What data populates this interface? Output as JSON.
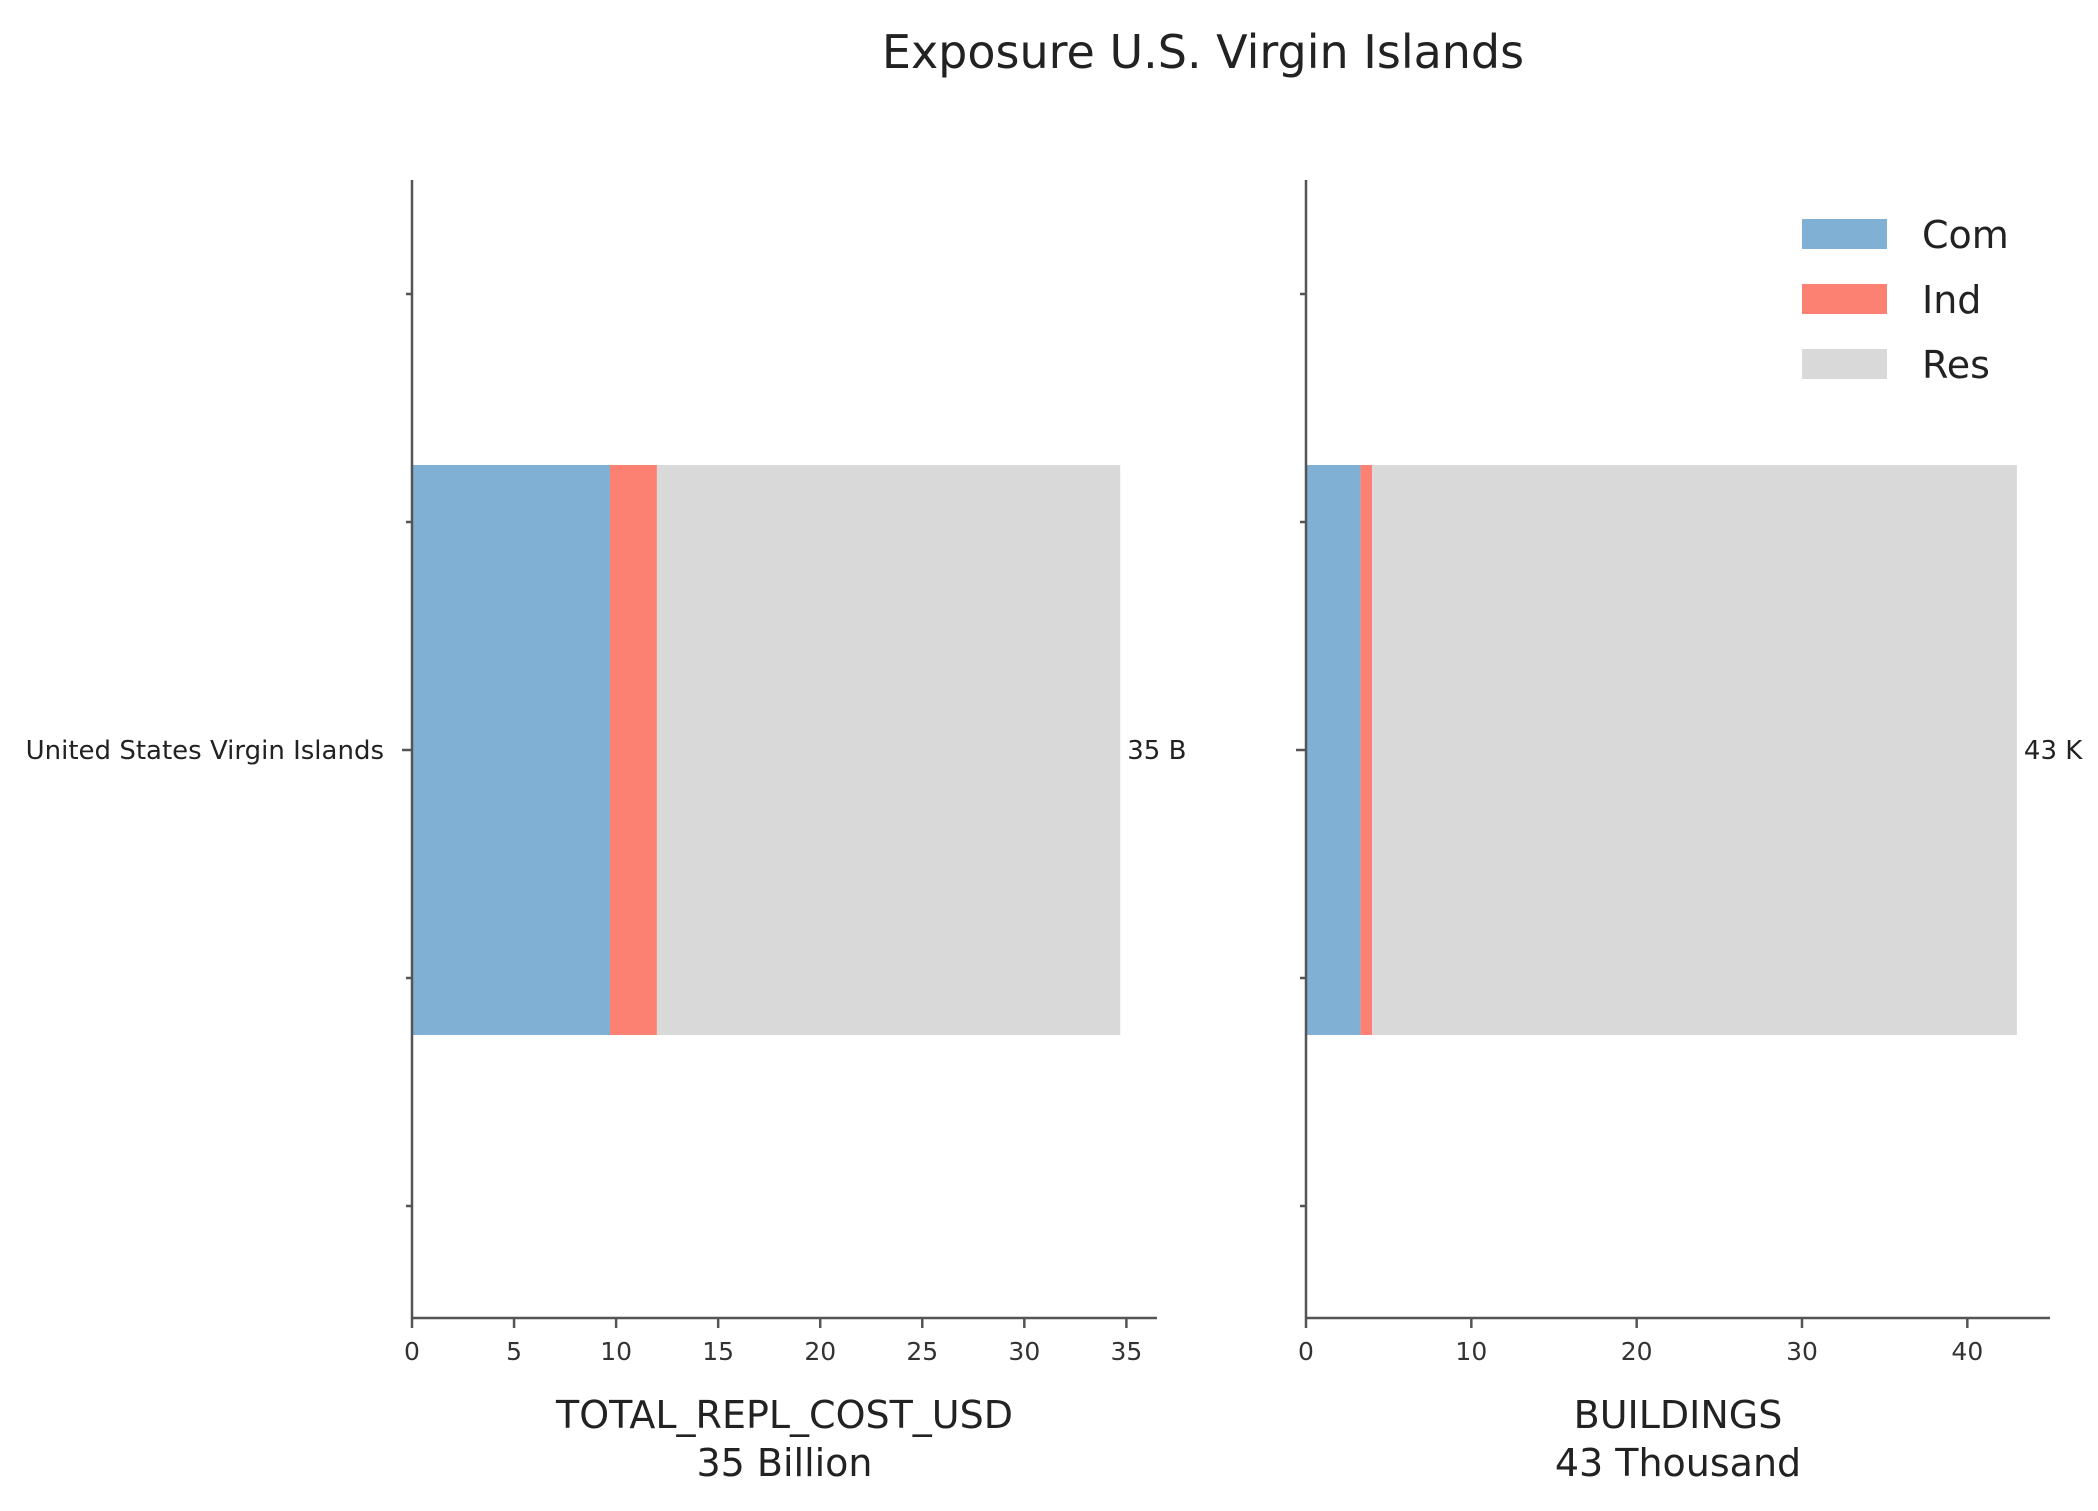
{
  "title": "Exposure U.S. Virgin Islands",
  "colors": {
    "Com": "#80b0d3",
    "Ind": "#fc8173",
    "Res": "#d9d9d9"
  },
  "legend": {
    "placement": "top-right",
    "items": [
      "Com",
      "Ind",
      "Res"
    ]
  },
  "chart_data": [
    {
      "type": "bar",
      "orientation": "horizontal",
      "stacked": true,
      "categories": [
        "United States Virgin Islands"
      ],
      "series": [
        {
          "name": "Com",
          "values": [
            9.7
          ]
        },
        {
          "name": "Ind",
          "values": [
            2.3
          ]
        },
        {
          "name": "Res",
          "values": [
            22.7
          ]
        }
      ],
      "xlabel": "TOTAL_REPL_COST_USD",
      "xlabel_sub": "35 Billion",
      "xlim": [
        0,
        36.5
      ],
      "xticks": [
        0,
        5,
        10,
        15,
        20,
        25,
        30,
        35
      ],
      "total_label": "35 B",
      "grid": false
    },
    {
      "type": "bar",
      "orientation": "horizontal",
      "stacked": true,
      "categories": [
        "United States Virgin Islands"
      ],
      "series": [
        {
          "name": "Com",
          "values": [
            3.3
          ]
        },
        {
          "name": "Ind",
          "values": [
            0.7
          ]
        },
        {
          "name": "Res",
          "values": [
            39.0
          ]
        }
      ],
      "xlabel": "BUILDINGS",
      "xlabel_sub": "43 Thousand",
      "xlim": [
        0,
        45
      ],
      "xticks": [
        0,
        10,
        20,
        30,
        40
      ],
      "total_label": "43 K",
      "grid": false
    }
  ]
}
